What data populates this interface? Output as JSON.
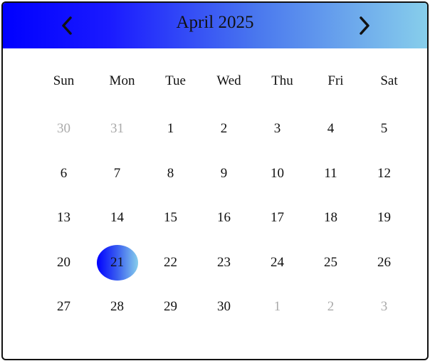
{
  "header": {
    "title": "April 2025",
    "prev_icon": "chevron-left-icon",
    "next_icon": "chevron-right-icon",
    "gradient": [
      "#0000ff",
      "#87ceeb"
    ]
  },
  "weekdays": [
    "Sun",
    "Mon",
    "Tue",
    "Wed",
    "Thu",
    "Fri",
    "Sat"
  ],
  "weeks": [
    [
      {
        "label": "30",
        "muted": true
      },
      {
        "label": "31",
        "muted": true
      },
      {
        "label": "1"
      },
      {
        "label": "2"
      },
      {
        "label": "3"
      },
      {
        "label": "4"
      },
      {
        "label": "5"
      }
    ],
    [
      {
        "label": "6"
      },
      {
        "label": "7"
      },
      {
        "label": "8"
      },
      {
        "label": "9"
      },
      {
        "label": "10"
      },
      {
        "label": "11"
      },
      {
        "label": "12"
      }
    ],
    [
      {
        "label": "13"
      },
      {
        "label": "14"
      },
      {
        "label": "15"
      },
      {
        "label": "16"
      },
      {
        "label": "17"
      },
      {
        "label": "18"
      },
      {
        "label": "19"
      }
    ],
    [
      {
        "label": "20"
      },
      {
        "label": "21",
        "selected": true
      },
      {
        "label": "22"
      },
      {
        "label": "23"
      },
      {
        "label": "24"
      },
      {
        "label": "25"
      },
      {
        "label": "26"
      }
    ],
    [
      {
        "label": "27"
      },
      {
        "label": "28"
      },
      {
        "label": "29"
      },
      {
        "label": "30"
      },
      {
        "label": "1",
        "muted": true
      },
      {
        "label": "2",
        "muted": true
      },
      {
        "label": "3",
        "muted": true
      }
    ]
  ],
  "colors": {
    "muted_text": "#aaaaaa",
    "selected_gradient": [
      "#0000ff",
      "#87ceeb"
    ]
  }
}
